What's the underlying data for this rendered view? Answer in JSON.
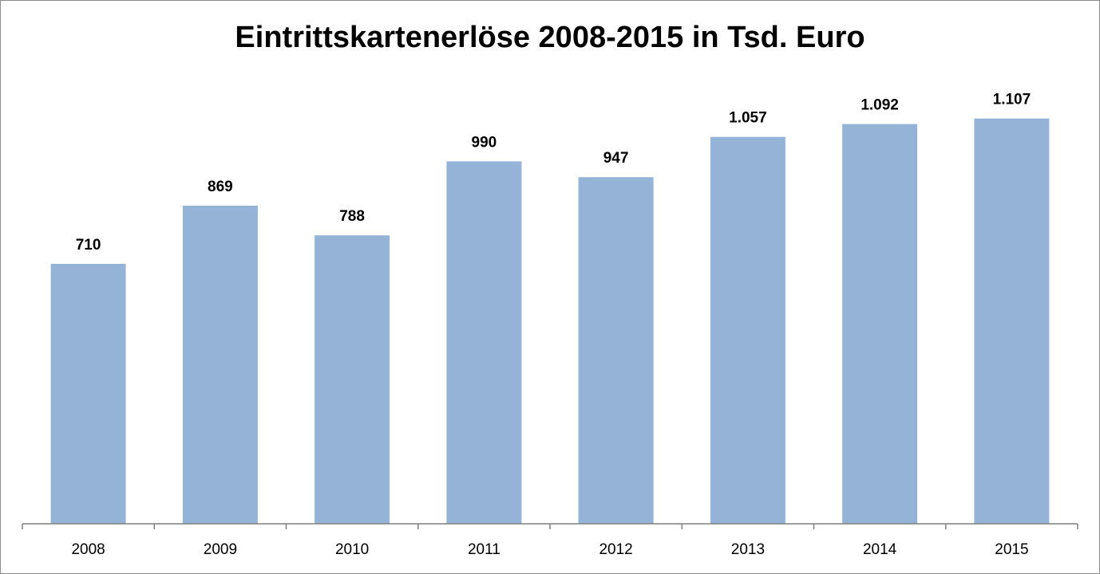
{
  "chart_data": {
    "type": "bar",
    "title": "Eintrittskartenerlöse 2008-2015 in Tsd. Euro",
    "categories": [
      "2008",
      "2009",
      "2010",
      "2011",
      "2012",
      "2013",
      "2014",
      "2015"
    ],
    "values": [
      710,
      869,
      788,
      990,
      947,
      1057,
      1092,
      1107
    ],
    "data_labels": [
      "710",
      "869",
      "788",
      "990",
      "947",
      "1.057",
      "1.092",
      "1.107"
    ],
    "ylim": [
      0,
      1200
    ],
    "grid": false,
    "legend": "none",
    "bar_color": "#95b3d7"
  }
}
